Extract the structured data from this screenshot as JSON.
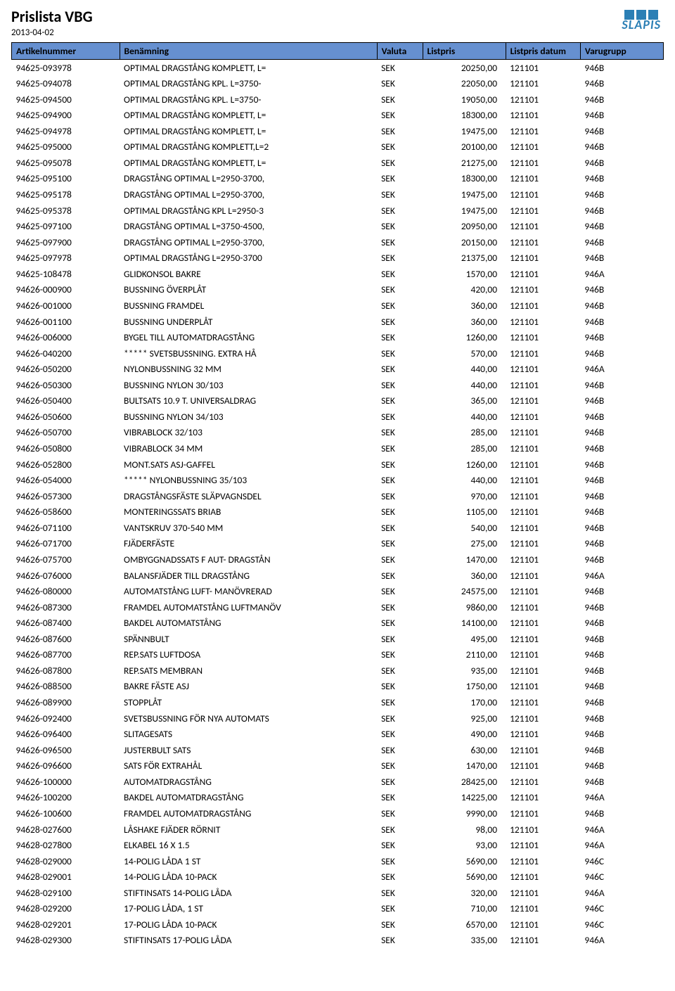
{
  "header": {
    "title": "Prislista VBG",
    "date": "2013-04-02",
    "logo_text": "SLÄPIS"
  },
  "table": {
    "columns": [
      "Artikelnummer",
      "Benämning",
      "Valuta",
      "Listpris",
      "Listpris datum",
      "Varugrupp"
    ],
    "rows": [
      [
        "94625-093978",
        "OPTIMAL DRAGSTÅNG KOMPLETT, L=",
        "SEK",
        "20250,00",
        "121101",
        "946B"
      ],
      [
        "94625-094078",
        "OPTIMAL DRAGSTÅNG KPL. L=3750-",
        "SEK",
        "22050,00",
        "121101",
        "946B"
      ],
      [
        "94625-094500",
        "OPTIMAL DRAGSTÅNG KPL. L=3750-",
        "SEK",
        "19050,00",
        "121101",
        "946B"
      ],
      [
        "94625-094900",
        "OPTIMAL DRAGSTÅNG KOMPLETT, L=",
        "SEK",
        "18300,00",
        "121101",
        "946B"
      ],
      [
        "94625-094978",
        "OPTIMAL DRAGSTÅNG KOMPLETT, L=",
        "SEK",
        "19475,00",
        "121101",
        "946B"
      ],
      [
        "94625-095000",
        "OPTIMAL DRAGSTÅNG KOMPLETT,L=2",
        "SEK",
        "20100,00",
        "121101",
        "946B"
      ],
      [
        "94625-095078",
        "OPTIMAL DRAGSTÅNG KOMPLETT, L=",
        "SEK",
        "21275,00",
        "121101",
        "946B"
      ],
      [
        "94625-095100",
        "DRAGSTÅNG OPTIMAL L=2950-3700,",
        "SEK",
        "18300,00",
        "121101",
        "946B"
      ],
      [
        "94625-095178",
        "DRAGSTÅNG OPTIMAL L=2950-3700,",
        "SEK",
        "19475,00",
        "121101",
        "946B"
      ],
      [
        "94625-095378",
        "OPTIMAL DRAGSTÅNG KPL L=2950-3",
        "SEK",
        "19475,00",
        "121101",
        "946B"
      ],
      [
        "94625-097100",
        "DRAGSTÅNG OPTIMAL L=3750-4500,",
        "SEK",
        "20950,00",
        "121101",
        "946B"
      ],
      [
        "94625-097900",
        "DRAGSTÅNG OPTIMAL L=2950-3700,",
        "SEK",
        "20150,00",
        "121101",
        "946B"
      ],
      [
        "94625-097978",
        "OPTIMAL DRAGSTÅNG L=2950-3700",
        "SEK",
        "21375,00",
        "121101",
        "946B"
      ],
      [
        "94625-108478",
        "GLIDKONSOL BAKRE",
        "SEK",
        "1570,00",
        "121101",
        "946A"
      ],
      [
        "94626-000900",
        "BUSSNING ÖVERPLÅT",
        "SEK",
        "420,00",
        "121101",
        "946B"
      ],
      [
        "94626-001000",
        "BUSSNING FRAMDEL",
        "SEK",
        "360,00",
        "121101",
        "946B"
      ],
      [
        "94626-001100",
        "BUSSNING UNDERPLÅT",
        "SEK",
        "360,00",
        "121101",
        "946B"
      ],
      [
        "94626-006000",
        "BYGEL TILL AUTOMATDRAGSTÅNG",
        "SEK",
        "1260,00",
        "121101",
        "946B"
      ],
      [
        "94626-040200",
        "*****  SVETSBUSSNING. EXTRA HÅ",
        "SEK",
        "570,00",
        "121101",
        "946B"
      ],
      [
        "94626-050200",
        "NYLONBUSSNING 32 MM",
        "SEK",
        "440,00",
        "121101",
        "946A"
      ],
      [
        "94626-050300",
        "BUSSNING NYLON 30/103",
        "SEK",
        "440,00",
        "121101",
        "946B"
      ],
      [
        "94626-050400",
        "BULTSATS 10.9 T. UNIVERSALDRAG",
        "SEK",
        "365,00",
        "121101",
        "946B"
      ],
      [
        "94626-050600",
        "BUSSNING NYLON 34/103",
        "SEK",
        "440,00",
        "121101",
        "946B"
      ],
      [
        "94626-050700",
        "VIBRABLOCK 32/103",
        "SEK",
        "285,00",
        "121101",
        "946B"
      ],
      [
        "94626-050800",
        "VIBRABLOCK 34 MM",
        "SEK",
        "285,00",
        "121101",
        "946B"
      ],
      [
        "94626-052800",
        "MONT.SATS ASJ-GAFFEL",
        "SEK",
        "1260,00",
        "121101",
        "946B"
      ],
      [
        "94626-054000",
        "*****  NYLONBUSSNING 35/103",
        "SEK",
        "440,00",
        "121101",
        "946B"
      ],
      [
        "94626-057300",
        "DRAGSTÅNGSFÄSTE SLÄPVAGNSDEL",
        "SEK",
        "970,00",
        "121101",
        "946B"
      ],
      [
        "94626-058600",
        "MONTERINGSSATS BRIAB",
        "SEK",
        "1105,00",
        "121101",
        "946B"
      ],
      [
        "94626-071100",
        "VANTSKRUV 370-540 MM",
        "SEK",
        "540,00",
        "121101",
        "946B"
      ],
      [
        "94626-071700",
        "FJÄDERFÄSTE",
        "SEK",
        "275,00",
        "121101",
        "946B"
      ],
      [
        "94626-075700",
        "OMBYGGNADSSATS F AUT- DRAGSTÅN",
        "SEK",
        "1470,00",
        "121101",
        "946B"
      ],
      [
        "94626-076000",
        "BALANSFJÄDER TILL DRAGSTÅNG",
        "SEK",
        "360,00",
        "121101",
        "946A"
      ],
      [
        "94626-080000",
        "AUTOMATSTÅNG LUFT- MANÖVRERAD",
        "SEK",
        "24575,00",
        "121101",
        "946B"
      ],
      [
        "94626-087300",
        "FRAMDEL AUTOMATSTÅNG LUFTMANÖV",
        "SEK",
        "9860,00",
        "121101",
        "946B"
      ],
      [
        "94626-087400",
        "BAKDEL AUTOMATSTÅNG",
        "SEK",
        "14100,00",
        "121101",
        "946B"
      ],
      [
        "94626-087600",
        "SPÄNNBULT",
        "SEK",
        "495,00",
        "121101",
        "946B"
      ],
      [
        "94626-087700",
        "REP.SATS LUFTDOSA",
        "SEK",
        "2110,00",
        "121101",
        "946B"
      ],
      [
        "94626-087800",
        "REP.SATS MEMBRAN",
        "SEK",
        "935,00",
        "121101",
        "946B"
      ],
      [
        "94626-088500",
        "BAKRE FÄSTE ASJ",
        "SEK",
        "1750,00",
        "121101",
        "946B"
      ],
      [
        "94626-089900",
        "STOPPLÅT",
        "SEK",
        "170,00",
        "121101",
        "946B"
      ],
      [
        "94626-092400",
        "SVETSBUSSNING FÖR NYA AUTOMATS",
        "SEK",
        "925,00",
        "121101",
        "946B"
      ],
      [
        "94626-096400",
        "SLITAGESATS",
        "SEK",
        "490,00",
        "121101",
        "946B"
      ],
      [
        "94626-096500",
        "JUSTERBULT SATS",
        "SEK",
        "630,00",
        "121101",
        "946B"
      ],
      [
        "94626-096600",
        "SATS FÖR EXTRAHÅL",
        "SEK",
        "1470,00",
        "121101",
        "946B"
      ],
      [
        "94626-100000",
        "AUTOMATDRAGSTÅNG",
        "SEK",
        "28425,00",
        "121101",
        "946B"
      ],
      [
        "94626-100200",
        "BAKDEL AUTOMATDRAGSTÅNG",
        "SEK",
        "14225,00",
        "121101",
        "946A"
      ],
      [
        "94626-100600",
        "FRAMDEL AUTOMATDRAGSTÅNG",
        "SEK",
        "9990,00",
        "121101",
        "946B"
      ],
      [
        "94628-027600",
        "LÅSHAKE FJÄDER RÖRNIT",
        "SEK",
        "98,00",
        "121101",
        "946A"
      ],
      [
        "94628-027800",
        "ELKABEL 16 X 1.5",
        "SEK",
        "93,00",
        "121101",
        "946A"
      ],
      [
        "94628-029000",
        "14-POLIG LÅDA 1 ST",
        "SEK",
        "5690,00",
        "121101",
        "946C"
      ],
      [
        "94628-029001",
        "14-POLIG LÅDA 10-PACK",
        "SEK",
        "5690,00",
        "121101",
        "946C"
      ],
      [
        "94628-029100",
        "STIFTINSATS 14-POLIG LÅDA",
        "SEK",
        "320,00",
        "121101",
        "946A"
      ],
      [
        "94628-029200",
        "17-POLIG LÅDA, 1 ST",
        "SEK",
        "710,00",
        "121101",
        "946C"
      ],
      [
        "94628-029201",
        "17-POLIG LÅDA 10-PACK",
        "SEK",
        "6570,00",
        "121101",
        "946C"
      ],
      [
        "94628-029300",
        "STIFTINSATS 17-POLIG LÅDA",
        "SEK",
        "335,00",
        "121101",
        "946A"
      ]
    ]
  },
  "styling": {
    "header_bg": "#4472c4",
    "header_text": "#000000",
    "body_text": "#000000",
    "logo_color": "#2b7fb5",
    "font_family": "Calibri, Arial, sans-serif",
    "title_fontsize": 22,
    "body_fontsize": 13.5
  }
}
